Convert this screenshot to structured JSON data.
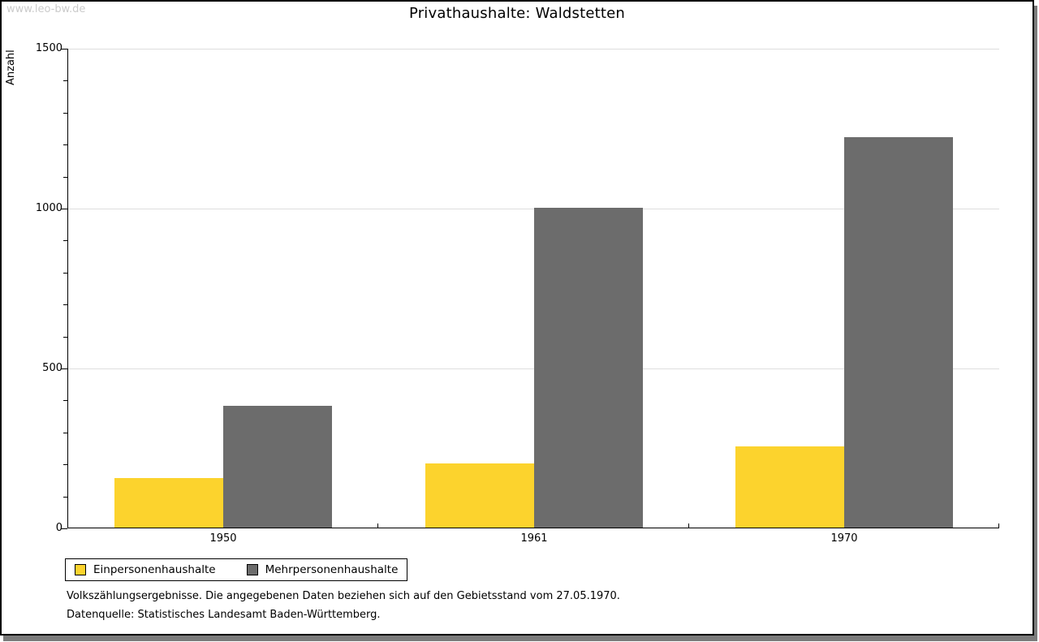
{
  "watermark": "www.leo-bw.de",
  "chart_data": {
    "type": "bar",
    "title": "Privathaushalte: Waldstetten",
    "xlabel": "",
    "ylabel": "Anzahl",
    "categories": [
      "1950",
      "1961",
      "1970"
    ],
    "series": [
      {
        "name": "Einpersonenhaushalte",
        "color": "#fcd32d",
        "values": [
          155,
          200,
          255
        ]
      },
      {
        "name": "Mehrpersonenhaushalte",
        "color": "#6c6c6c",
        "values": [
          380,
          1000,
          1220
        ]
      }
    ],
    "ylim": [
      0,
      1500
    ],
    "yticks": [
      0,
      500,
      1000,
      1500
    ],
    "minor_tick_step": 100,
    "grid": "horizontal-at-major-ticks",
    "legend_position": "bottom-left"
  },
  "footnotes": {
    "line1": "Volkszählungsergebnisse. Die angegebenen Daten beziehen sich auf den Gebietsstand vom 27.05.1970.",
    "line2": "Datenquelle: Statistisches Landesamt Baden-Württemberg."
  }
}
